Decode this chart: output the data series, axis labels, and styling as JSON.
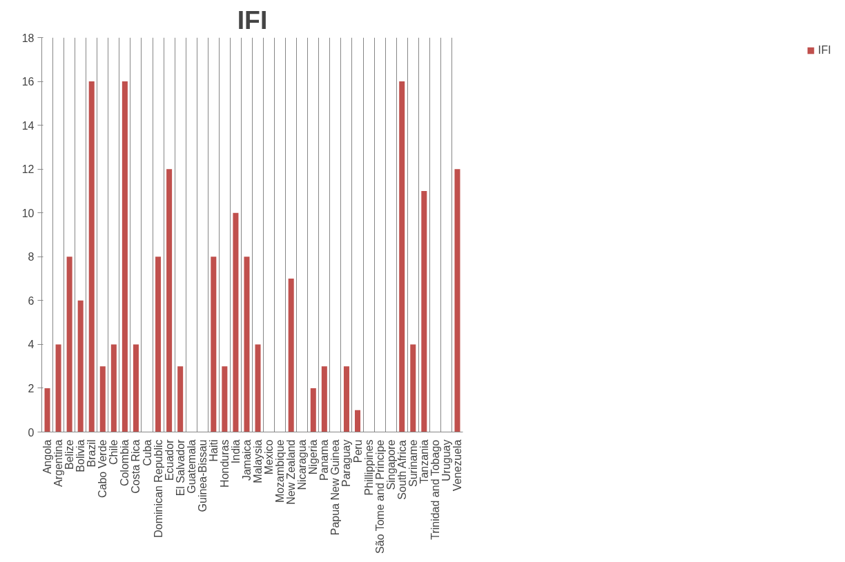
{
  "chart_data": {
    "type": "bar",
    "title": "IFI",
    "categories": [
      "Angola",
      "Argentina",
      "Belize",
      "Bolivia",
      "Brazil",
      "Cabo Verde",
      "Chile",
      "Colombia",
      "Costa Rica",
      "Cuba",
      "Dominican Republic",
      "Ecuador",
      "El Salvador",
      "Guatemala",
      "Guinea-Bissau",
      "Haiti",
      "Honduras",
      "India",
      "Jamaica",
      "Malaysia",
      "Mexico",
      "Mozambique",
      "New Zealand",
      "Nicaragua",
      "Nigeria",
      "Panama",
      "Papua New Guinea",
      "Paraguay",
      "Peru",
      "Phillippines",
      "São Tome and Principe",
      "Singapore",
      "South Africa",
      "Suriname",
      "Tanzania",
      "Trinidad and Tobago",
      "Uruguay",
      "Venezuela"
    ],
    "series": [
      {
        "name": "IFI",
        "color": "#c0504d",
        "values": [
          2,
          4,
          8,
          6,
          16,
          3,
          4,
          16,
          4,
          0,
          8,
          12,
          3,
          0,
          0,
          8,
          3,
          10,
          8,
          4,
          0,
          0,
          7,
          0,
          2,
          3,
          0,
          3,
          1,
          0,
          0,
          0,
          16,
          4,
          11,
          0,
          0,
          12
        ]
      }
    ],
    "ylim": [
      0,
      18
    ],
    "yticks": [
      0,
      2,
      4,
      6,
      8,
      10,
      12,
      14,
      16,
      18
    ],
    "grid": "x",
    "legend": "right"
  }
}
